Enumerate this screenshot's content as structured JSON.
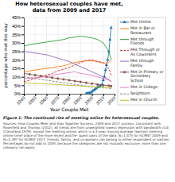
{
  "chart_data": {
    "type": "line",
    "title": "How heterosexual couples have met,\ndata from 2009 and 2017",
    "x_label": "Year Couple Met",
    "y_label": "percentage who met this way",
    "xlim": [
      1940,
      2020
    ],
    "ylim": [
      0,
      0.45
    ],
    "xticks": [
      1940,
      1950,
      1960,
      1970,
      1980,
      1990,
      2000,
      2010,
      2020
    ],
    "yticks": [
      {
        "value": 0.0,
        "label": "0%"
      },
      {
        "value": 0.05,
        "label": "5%"
      },
      {
        "value": 0.1,
        "label": "10%"
      },
      {
        "value": 0.15,
        "label": "15%"
      },
      {
        "value": 0.2,
        "label": "20%"
      },
      {
        "value": 0.25,
        "label": "25%"
      },
      {
        "value": 0.3,
        "label": "30%"
      },
      {
        "value": 0.35,
        "label": "35%"
      },
      {
        "value": 0.4,
        "label": "40%"
      },
      {
        "value": 0.45,
        "label": "45%"
      }
    ],
    "grid": true,
    "legend": "right",
    "series": [
      {
        "name": "Met Online",
        "marker": "triangle",
        "line_style": "solid",
        "x": [
          1995,
          1996,
          1997,
          1998,
          1999,
          2000,
          2001,
          2002,
          2003,
          2004,
          2005,
          2006,
          2007,
          2008,
          2009,
          2010,
          2011,
          2012,
          2013,
          2014,
          2015,
          2016,
          2017
        ],
        "values": [
          0.002,
          0.003,
          0.004,
          0.006,
          0.008,
          0.012,
          0.018,
          0.022,
          0.028,
          0.032,
          0.038,
          0.042,
          0.045,
          0.05,
          0.055,
          0.08,
          0.1,
          0.14,
          0.17,
          0.2,
          0.25,
          0.32,
          0.39
        ]
      },
      {
        "name": "Met in Bar or\nRestaurant",
        "line_style": "solid",
        "x": [
          1940,
          1945,
          1950,
          1955,
          1960,
          1965,
          1970,
          1975,
          1980,
          1985,
          1990,
          1995,
          2000,
          2005,
          2010,
          2015,
          2017
        ],
        "values": [
          0.13,
          0.135,
          0.14,
          0.145,
          0.15,
          0.155,
          0.16,
          0.165,
          0.175,
          0.185,
          0.19,
          0.195,
          0.195,
          0.19,
          0.18,
          0.185,
          0.2
        ]
      },
      {
        "name": "Met through\nFriends",
        "line_style": "solid",
        "x": [
          1940,
          1945,
          1950,
          1955,
          1960,
          1965,
          1970,
          1975,
          1980,
          1985,
          1990,
          1995,
          2000,
          2005,
          2010,
          2015,
          2017
        ],
        "values": [
          0.28,
          0.29,
          0.295,
          0.3,
          0.305,
          0.31,
          0.315,
          0.32,
          0.33,
          0.335,
          0.34,
          0.335,
          0.33,
          0.32,
          0.3,
          0.25,
          0.2
        ]
      },
      {
        "name": "Met Through or\nAs Coworkers",
        "line_style": "dashed",
        "x": [
          1940,
          1945,
          1950,
          1955,
          1960,
          1965,
          1970,
          1975,
          1980,
          1985,
          1990,
          1995,
          2000,
          2005,
          2010,
          2015,
          2017
        ],
        "values": [
          0.07,
          0.08,
          0.09,
          0.1,
          0.11,
          0.12,
          0.135,
          0.145,
          0.155,
          0.17,
          0.185,
          0.195,
          0.2,
          0.19,
          0.185,
          0.15,
          0.11
        ]
      },
      {
        "name": "Met through\nFamily",
        "line_style": "solid",
        "x": [
          1940,
          1945,
          1950,
          1955,
          1960,
          1965,
          1970,
          1975,
          1980,
          1985,
          1990,
          1995,
          2000,
          2005,
          2010,
          2015,
          2017
        ],
        "values": [
          0.25,
          0.245,
          0.24,
          0.235,
          0.23,
          0.22,
          0.21,
          0.2,
          0.19,
          0.175,
          0.16,
          0.145,
          0.13,
          0.115,
          0.1,
          0.085,
          0.07
        ]
      },
      {
        "name": "Met in Primary or\nSecondary\nSchool",
        "marker": "square",
        "line_style": "solid",
        "x": [
          1940,
          1945,
          1950,
          1955,
          1960,
          1965,
          1970,
          1975,
          1980,
          1985,
          1990,
          1995,
          2000,
          2005,
          2010,
          2015,
          2017
        ],
        "values": [
          0.12,
          0.115,
          0.11,
          0.105,
          0.1,
          0.095,
          0.09,
          0.085,
          0.08,
          0.075,
          0.07,
          0.065,
          0.06,
          0.055,
          0.05,
          0.048,
          0.045
        ]
      },
      {
        "name": "Met in College",
        "line_style": "solid",
        "x": [
          1940,
          1945,
          1950,
          1955,
          1960,
          1965,
          1970,
          1975,
          1980,
          1985,
          1990,
          1995,
          2000,
          2005,
          2010,
          2015,
          2017
        ],
        "values": [
          0.09,
          0.092,
          0.095,
          0.098,
          0.1,
          0.11,
          0.115,
          0.12,
          0.125,
          0.13,
          0.12,
          0.115,
          0.11,
          0.1,
          0.09,
          0.08,
          0.07
        ]
      },
      {
        "name": "Neighbors",
        "line_style": "dashed",
        "x": [
          1940,
          1945,
          1950,
          1955,
          1960,
          1965,
          1970,
          1975,
          1980,
          1985,
          1990,
          1995,
          2000,
          2005,
          2010,
          2015,
          2017
        ],
        "values": [
          0.1,
          0.095,
          0.09,
          0.085,
          0.08,
          0.075,
          0.07,
          0.065,
          0.06,
          0.055,
          0.05,
          0.045,
          0.04,
          0.038,
          0.035,
          0.033,
          0.03
        ]
      },
      {
        "name": "Met in Church",
        "line_style": "solid",
        "x": [
          1940,
          1945,
          1950,
          1955,
          1960,
          1965,
          1970,
          1975,
          1980,
          1985,
          1990,
          1995,
          2000,
          2005,
          2010,
          2015,
          2017
        ],
        "values": [
          0.065,
          0.063,
          0.062,
          0.06,
          0.058,
          0.056,
          0.054,
          0.052,
          0.05,
          0.048,
          0.046,
          0.044,
          0.042,
          0.04,
          0.038,
          0.036,
          0.034
        ]
      }
    ],
    "annotations": [
      "Figure 1: The continued rise of meeting online for heterosexual couples.",
      "Sources: How Couples Meet and Stay Together Surveys, 2009 and 2017 surveys. Consistent with Rosenfeld and Thomas (2012), all trends are from unweighted lowess regression with bandwidth=0.8 (Cleveland 1979), except the meeting online, which is a 3-year moving average (earliest meeting online time) place of the more recent and fre- quent pairs of the data. N=1,475 for HCMST 2009 and N=2,397 for HCMST 2017. Friends, family, and co-workers can belong to either respondent or partner. Percentages do not add to 100% because the categories are not mutually exclusive, more than one category can apply."
    ]
  }
}
